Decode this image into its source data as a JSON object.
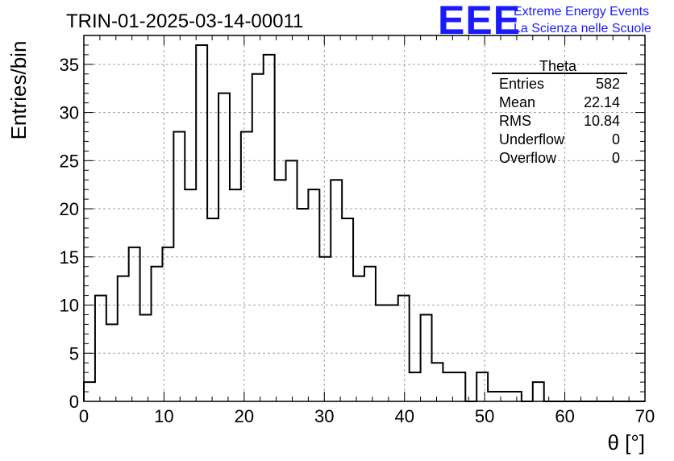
{
  "title": "TRIN-01-2025-03-14-00011",
  "logo": {
    "mark": "EEE",
    "line1": "Extreme Energy Events",
    "line2": "La Scienza nelle Scuole",
    "color": "#1a1aff"
  },
  "stats_box": {
    "name": "Theta",
    "rows": [
      {
        "label": "Entries",
        "value": "582"
      },
      {
        "label": "Mean",
        "value": "22.14"
      },
      {
        "label": "RMS",
        "value": "10.84"
      },
      {
        "label": "Underflow",
        "value": "0"
      },
      {
        "label": "Overflow",
        "value": "0"
      }
    ]
  },
  "chart_data": {
    "type": "bar",
    "title": "TRIN-01-2025-03-14-00011",
    "xlabel": "θ [°]",
    "ylabel": "Entries/bin",
    "xlim": [
      0,
      70
    ],
    "ylim": [
      0,
      38
    ],
    "bin_width": 1.4,
    "x_ticks": [
      0,
      10,
      20,
      30,
      40,
      50,
      60,
      70
    ],
    "y_ticks": [
      0,
      5,
      10,
      15,
      20,
      25,
      30,
      35
    ],
    "grid": true,
    "values": [
      2,
      11,
      8,
      13,
      16,
      9,
      14,
      16,
      28,
      22,
      37,
      19,
      32,
      22,
      28,
      34,
      36,
      23,
      25,
      20,
      22,
      15,
      23,
      19,
      13,
      14,
      10,
      10,
      11,
      3,
      9,
      4,
      3,
      3,
      0,
      3,
      1,
      1,
      1,
      0,
      2,
      0,
      0,
      0,
      0,
      0,
      0,
      0,
      0,
      0
    ]
  }
}
